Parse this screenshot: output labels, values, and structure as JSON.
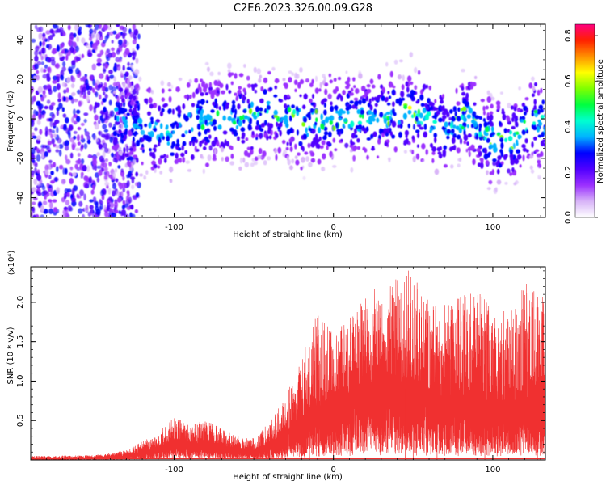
{
  "title": "C2E6.2023.326.00.09.G28",
  "chart_data": [
    {
      "type": "heatmap",
      "xlabel": "Height of straight line (km)",
      "ylabel": "Frequency (Hz)",
      "xlim": [
        -190,
        133
      ],
      "ylim": [
        -50,
        48
      ],
      "xticks": [
        -100,
        0,
        100
      ],
      "yticks": [
        -40,
        -20,
        0,
        20,
        40
      ],
      "colorbar": {
        "label": "Normalized spectral amplitude",
        "range": [
          0.0,
          0.85
        ],
        "ticks": [
          0.0,
          0.2,
          0.4,
          0.6,
          0.8
        ],
        "colors": [
          "#ffffff",
          "#d8b4f8",
          "#9b30ff",
          "#5000ff",
          "#0000ff",
          "#00b4ff",
          "#00ffd0",
          "#00ff40",
          "#80ff00",
          "#ffff00",
          "#ff9000",
          "#ff2000",
          "#ff0080"
        ]
      },
      "ridge_center_hz": [
        {
          "x": -135,
          "y": -2
        },
        {
          "x": -120,
          "y": -4
        },
        {
          "x": -100,
          "y": -8
        },
        {
          "x": -85,
          "y": 0
        },
        {
          "x": -60,
          "y": 0
        },
        {
          "x": -40,
          "y": 4
        },
        {
          "x": -20,
          "y": -2
        },
        {
          "x": 0,
          "y": 0
        },
        {
          "x": 20,
          "y": 0
        },
        {
          "x": 40,
          "y": 3
        },
        {
          "x": 55,
          "y": 2
        },
        {
          "x": 70,
          "y": -8
        },
        {
          "x": 85,
          "y": 3
        },
        {
          "x": 95,
          "y": -10
        },
        {
          "x": 110,
          "y": -12
        },
        {
          "x": 125,
          "y": 0
        },
        {
          "x": 133,
          "y": -2
        }
      ],
      "noise_region_km": [
        -190,
        -130
      ]
    },
    {
      "type": "line",
      "xlabel": "Height of straight line (km)",
      "ylabel": "SNR (10 * v/v)",
      "y_multiplier": "(x10⁴)",
      "xlim": [
        -190,
        133
      ],
      "ylim": [
        0,
        2.45
      ],
      "xticks": [
        -100,
        0,
        100
      ],
      "yticks": [
        0.5,
        1.0,
        1.5,
        2.0
      ],
      "series": [
        {
          "color": "#f03030",
          "envelope_x": [
            -190,
            -150,
            -130,
            -110,
            -100,
            -90,
            -80,
            -70,
            -60,
            -50,
            -40,
            -30,
            -20,
            -10,
            0,
            10,
            20,
            30,
            40,
            50,
            60,
            70,
            80,
            90,
            100,
            110,
            120,
            133
          ],
          "envelope_peak": [
            0.05,
            0.06,
            0.12,
            0.35,
            0.55,
            0.45,
            0.5,
            0.4,
            0.3,
            0.28,
            0.5,
            0.8,
            1.3,
            1.9,
            1.6,
            1.8,
            2.1,
            2.25,
            2.3,
            2.45,
            2.0,
            2.0,
            2.1,
            2.2,
            1.9,
            1.9,
            2.25,
            2.1
          ],
          "envelope_mean": [
            0.02,
            0.03,
            0.05,
            0.15,
            0.25,
            0.2,
            0.22,
            0.18,
            0.14,
            0.12,
            0.2,
            0.3,
            0.5,
            0.65,
            0.75,
            0.85,
            0.95,
            1.0,
            0.95,
            0.9,
            0.85,
            0.8,
            0.78,
            0.75,
            0.75,
            0.72,
            0.75,
            0.8
          ],
          "dropouts": [
            {
              "x": -15,
              "to": 0.7
            },
            {
              "x": 0,
              "to": 0.6
            },
            {
              "x": 45,
              "to": 0.9
            },
            {
              "x": 50,
              "to": 1.0
            },
            {
              "x": 65,
              "to": 0.7
            },
            {
              "x": 95,
              "to": 0.8
            },
            {
              "x": 128,
              "to": 0.7
            }
          ]
        }
      ]
    }
  ]
}
